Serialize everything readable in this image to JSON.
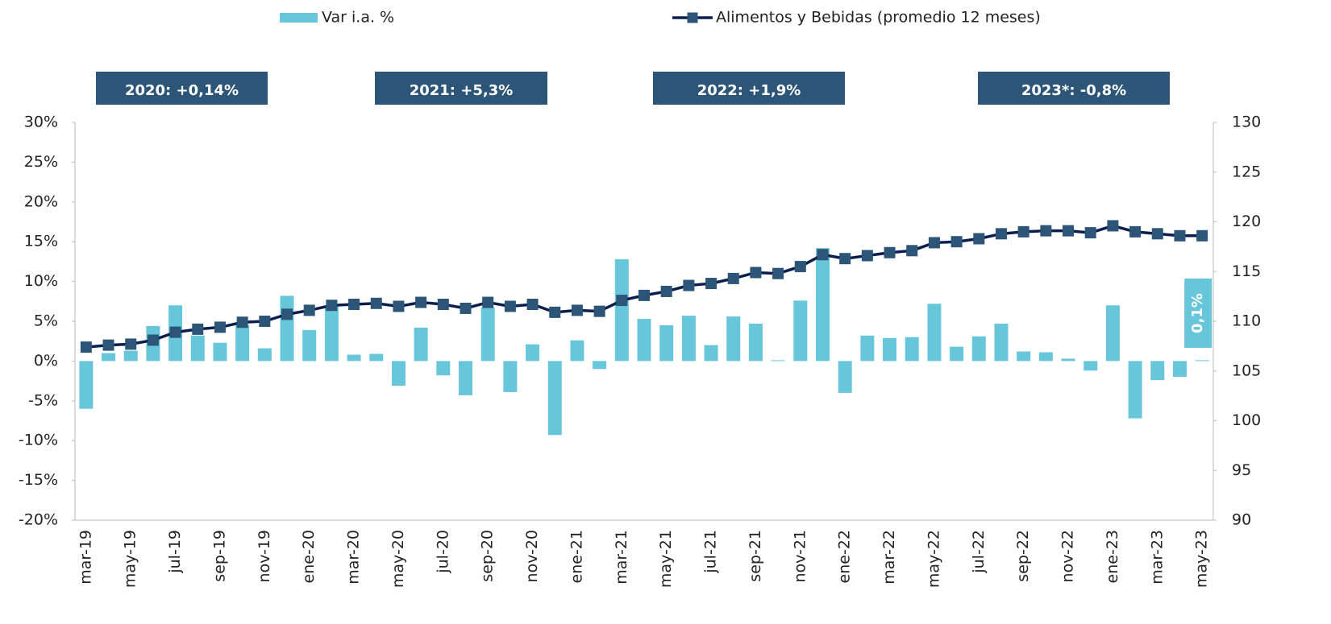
{
  "chart_data": {
    "type": "bar-line",
    "categories": [
      "mar-19",
      null,
      "may-19",
      null,
      "jul-19",
      null,
      "sep-19",
      null,
      "nov-19",
      null,
      "ene-20",
      null,
      "mar-20",
      null,
      "may-20",
      null,
      "jul-20",
      null,
      "sep-20",
      null,
      "nov-20",
      null,
      "ene-21",
      null,
      "mar-21",
      null,
      "may-21",
      null,
      "jul-21",
      null,
      "sep-21",
      null,
      "nov-21",
      null,
      "ene-22",
      null,
      "mar-22",
      null,
      "may-22",
      null,
      "jul-22",
      null,
      "sep-22",
      null,
      "nov-22",
      null,
      "ene-23",
      null,
      "mar-23",
      null,
      "may-23"
    ],
    "series": [
      {
        "name": "Var i.a. %",
        "type": "bar",
        "color": "#67c6d9",
        "values": [
          -6,
          1,
          1.3,
          4.4,
          7,
          3.2,
          2.3,
          4.5,
          1.6,
          8.2,
          3.9,
          7,
          0.8,
          0.9,
          -3.1,
          4.2,
          -1.8,
          -4.3,
          6.7,
          -3.9,
          2.1,
          -9.3,
          2.6,
          -1,
          12.8,
          5.3,
          4.5,
          5.7,
          2,
          5.6,
          4.7,
          0.1,
          7.6,
          14.2,
          -4,
          3.2,
          2.9,
          3,
          7.2,
          1.8,
          3.1,
          4.7,
          1.2,
          1.1,
          0.3,
          -1.2,
          7,
          -7.2,
          -2.4,
          -2,
          0.1
        ],
        "value_labels": [
          null,
          null,
          null,
          null,
          null,
          null,
          null,
          null,
          null,
          null,
          null,
          null,
          null,
          null,
          null,
          null,
          null,
          null,
          null,
          null,
          null,
          null,
          null,
          null,
          null,
          null,
          null,
          null,
          null,
          null,
          null,
          null,
          null,
          null,
          null,
          null,
          null,
          null,
          null,
          null,
          null,
          null,
          null,
          null,
          null,
          null,
          null,
          null,
          null,
          null,
          "0,1%"
        ]
      },
      {
        "name": "Alimentos y Bebidas (promedio 12 meses)",
        "type": "line",
        "axis": "y2",
        "color": "#0b1f4f",
        "marker_color": "#2c5577",
        "values": [
          107.4,
          107.6,
          107.7,
          108.1,
          108.9,
          109.2,
          109.4,
          109.9,
          110.0,
          110.7,
          111.1,
          111.6,
          111.7,
          111.8,
          111.5,
          111.9,
          111.7,
          111.3,
          111.9,
          111.5,
          111.7,
          110.9,
          111.1,
          111.0,
          112.1,
          112.6,
          113.0,
          113.6,
          113.8,
          114.3,
          114.9,
          114.8,
          115.5,
          116.7,
          116.3,
          116.6,
          116.9,
          117.1,
          117.9,
          118.0,
          118.3,
          118.8,
          119.0,
          119.1,
          119.1,
          118.9,
          119.6,
          119.0,
          118.8,
          118.6,
          118.6
        ]
      }
    ],
    "ylim": [
      -20,
      30
    ],
    "yticks": [
      {
        "value": -20,
        "label": "-20%"
      },
      {
        "value": -15,
        "label": "-15%"
      },
      {
        "value": -10,
        "label": "-10%"
      },
      {
        "value": -5,
        "label": "-5%"
      },
      {
        "value": 0,
        "label": "0%"
      },
      {
        "value": 5,
        "label": "5%"
      },
      {
        "value": 10,
        "label": "10%"
      },
      {
        "value": 15,
        "label": "15%"
      },
      {
        "value": 20,
        "label": "20%"
      },
      {
        "value": 25,
        "label": "25%"
      },
      {
        "value": 30,
        "label": "30%"
      }
    ],
    "y2lim": [
      90,
      130
    ],
    "y2ticks": [
      90,
      95,
      100,
      105,
      110,
      115,
      120,
      125,
      130
    ],
    "annotations": [
      "2020: +0,14%",
      "2021: +5,3%",
      "2022: +1,9%",
      "2023*: -0,8%"
    ],
    "annotation_color": "#2c5577"
  }
}
